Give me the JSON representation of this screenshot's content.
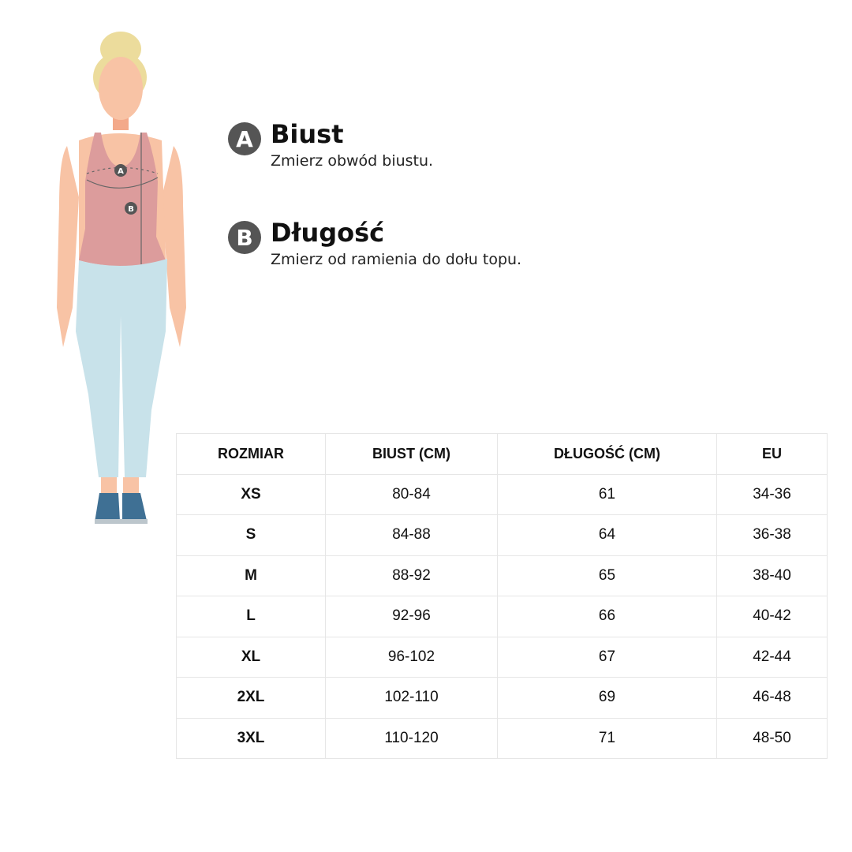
{
  "measurements": [
    {
      "badge": "A",
      "title": "Biust",
      "description": "Zmierz obwód biustu."
    },
    {
      "badge": "B",
      "title": "Długość",
      "description": "Zmierz od ramienia do dołu topu."
    }
  ],
  "figure": {
    "labels": [
      "A",
      "B"
    ],
    "colors": {
      "hair": "#ecdc9c",
      "skin": "#f8c3a5",
      "top": "#dc9c9c",
      "leggings": "#c8e2ea",
      "shoes": "#3f7094"
    }
  },
  "table": {
    "headers": [
      "ROZMIAR",
      "BIUST (CM)",
      "DŁUGOŚĆ (CM)",
      "EU"
    ],
    "rows": [
      [
        "XS",
        "80-84",
        "61",
        "34-36"
      ],
      [
        "S",
        "84-88",
        "64",
        "36-38"
      ],
      [
        "M",
        "88-92",
        "65",
        "38-40"
      ],
      [
        "L",
        "92-96",
        "66",
        "40-42"
      ],
      [
        "XL",
        "96-102",
        "67",
        "42-44"
      ],
      [
        "2XL",
        "102-110",
        "69",
        "46-48"
      ],
      [
        "3XL",
        "110-120",
        "71",
        "48-50"
      ]
    ]
  }
}
